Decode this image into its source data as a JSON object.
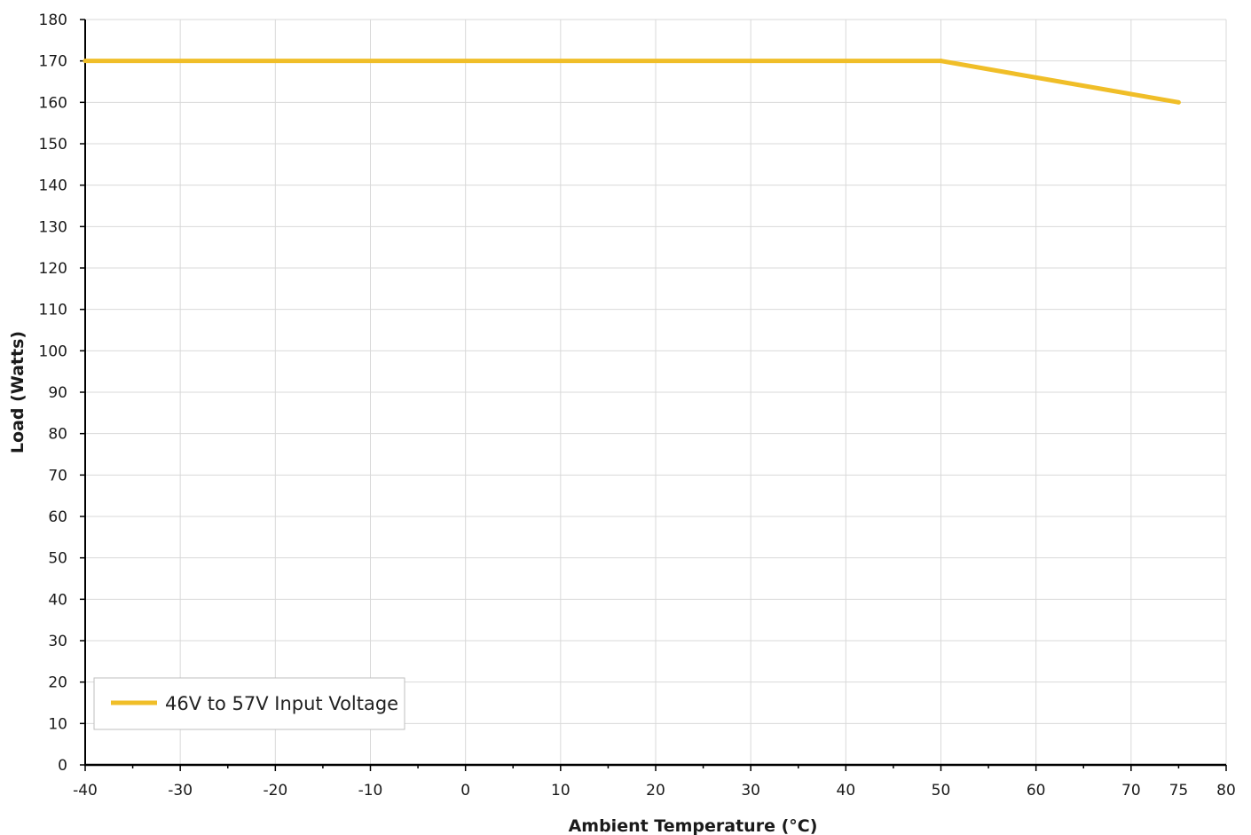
{
  "chart_data": {
    "type": "line",
    "title": "",
    "xlabel": "Ambient Temperature (°C)",
    "ylabel": "Load (Watts)",
    "xlim": [
      -40,
      80
    ],
    "ylim": [
      0,
      180
    ],
    "x_ticks": [
      -40,
      -30,
      -20,
      -10,
      0,
      10,
      20,
      30,
      40,
      50,
      60,
      70,
      75,
      80
    ],
    "x_tick_labels": [
      "-40",
      "-30",
      "-20",
      "-10",
      "0",
      "10",
      "20",
      "30",
      "40",
      "50",
      "60",
      "70",
      "75",
      "80"
    ],
    "x_gridlines": [
      -40,
      -30,
      -20,
      -10,
      0,
      10,
      20,
      30,
      40,
      50,
      60,
      70,
      80
    ],
    "y_ticks": [
      0,
      10,
      20,
      30,
      40,
      50,
      60,
      70,
      80,
      90,
      100,
      110,
      120,
      130,
      140,
      150,
      160,
      170,
      180
    ],
    "y_tick_labels": [
      "0",
      "10",
      "20",
      "30",
      "40",
      "50",
      "60",
      "70",
      "80",
      "90",
      "100",
      "110",
      "120",
      "130",
      "140",
      "150",
      "160",
      "170",
      "180"
    ],
    "grid": true,
    "legend_position": "bottom-left",
    "series": [
      {
        "name": "46V to 57V Input Voltage",
        "color": "#f0be28",
        "x": [
          -40,
          50,
          75
        ],
        "y": [
          170,
          170,
          160
        ]
      }
    ]
  }
}
